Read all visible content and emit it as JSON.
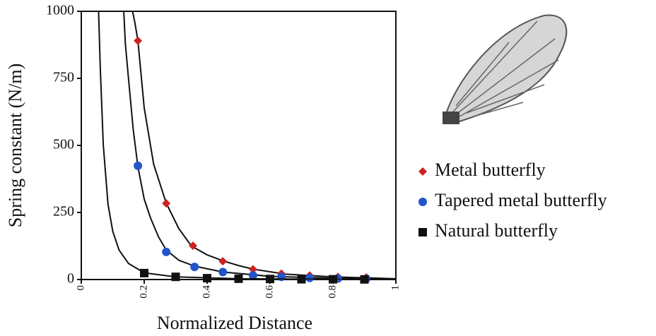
{
  "chart_data": {
    "type": "scatter",
    "x_label": "Normalized Distance",
    "y_label": "Spring constant (N/m)",
    "xlim": [
      0,
      1
    ],
    "ylim": [
      0,
      1000
    ],
    "xticks": [
      0,
      0.2,
      0.4,
      0.6,
      0.8,
      1
    ],
    "yticks": [
      0,
      250,
      500,
      750,
      1000
    ],
    "series": [
      {
        "name": "Metal butterfly",
        "color": "#cc2222",
        "marker": "diamond",
        "x": [
          0.18,
          0.27,
          0.355,
          0.45,
          0.546,
          0.636,
          0.726,
          0.816,
          0.906
        ],
        "values": [
          890,
          284,
          126,
          68,
          38,
          22,
          15,
          10,
          8
        ],
        "curve": {
          "x": [
            0.163,
            0.17,
            0.18,
            0.2,
            0.23,
            0.27,
            0.31,
            0.35,
            0.4,
            0.45,
            0.5,
            0.55,
            0.65,
            0.8,
            1
          ],
          "values": [
            1000,
            960,
            890,
            640,
            430,
            285,
            190,
            125,
            92,
            70,
            52,
            38,
            20,
            10,
            3
          ]
        }
      },
      {
        "name": "Tapered metal butterfly",
        "color": "#2255cc",
        "marker": "circle",
        "x": [
          0.18,
          0.27,
          0.36,
          0.45,
          0.546,
          0.636,
          0.726,
          0.816,
          0.906
        ],
        "values": [
          424,
          103,
          47,
          28,
          15,
          10,
          6,
          4,
          3
        ],
        "curve": {
          "x": [
            0.135,
            0.14,
            0.15,
            0.165,
            0.18,
            0.2,
            0.22,
            0.245,
            0.27,
            0.31,
            0.36,
            0.45,
            0.6,
            0.8,
            1
          ],
          "values": [
            1000,
            880,
            750,
            560,
            420,
            300,
            230,
            160,
            110,
            72,
            50,
            28,
            12,
            5,
            2
          ]
        }
      },
      {
        "name": "Natural butterfly",
        "color": "#111111",
        "marker": "square",
        "x": [
          0.2,
          0.3,
          0.4,
          0.5,
          0.6,
          0.7,
          0.8,
          0.9
        ],
        "values": [
          24,
          10,
          5,
          3,
          2,
          1,
          1,
          0.5
        ],
        "curve": {
          "x": [
            0.055,
            0.06,
            0.07,
            0.085,
            0.1,
            0.12,
            0.15,
            0.2,
            0.3,
            0.5,
            0.8,
            1
          ],
          "values": [
            1000,
            800,
            500,
            280,
            180,
            110,
            60,
            25,
            10,
            3,
            1,
            0
          ]
        }
      }
    ]
  }
}
